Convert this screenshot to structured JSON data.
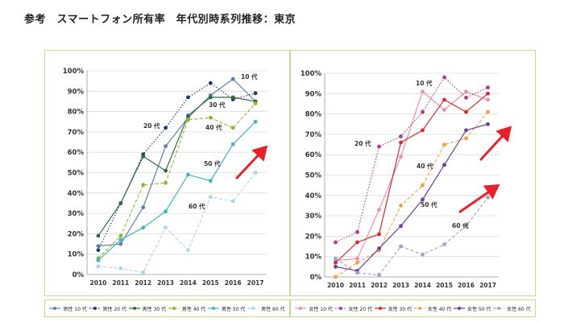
{
  "page_title": "参考　スマートフォン所有率　年代別時系列推移：東京",
  "chart_data": [
    {
      "type": "line",
      "x": [
        "2010",
        "2011",
        "2012",
        "2013",
        "2014",
        "2015",
        "2016",
        "2017"
      ],
      "y_ticks": [
        "0%",
        "10%",
        "20%",
        "30%",
        "40%",
        "50%",
        "60%",
        "70%",
        "80%",
        "90%",
        "100%"
      ],
      "ylim": [
        0,
        100
      ],
      "grid": true,
      "legend_position": "bottom",
      "series": [
        {
          "name": "男性 10 代",
          "label": "10 代",
          "color": "#5b7fa8",
          "dash": "solid",
          "values": [
            14,
            15,
            33,
            63,
            77,
            88,
            96,
            85
          ]
        },
        {
          "name": "男性 20 代",
          "label": "",
          "color": "#1c3a6e",
          "dash": "dotted",
          "values": [
            12,
            35,
            59,
            72,
            87,
            94,
            86,
            89
          ]
        },
        {
          "name": "男性 30 代",
          "label": "30 代",
          "color": "#2f6b3d",
          "dash": "solid",
          "values": [
            19,
            35,
            58,
            51,
            78,
            87,
            87,
            85
          ]
        },
        {
          "name": "男性 40 代",
          "label": "40 代",
          "color": "#8fb81f",
          "dash": "dashed",
          "values": [
            8,
            19,
            44,
            45,
            76,
            77,
            72,
            84
          ]
        },
        {
          "name": "男性 50 代",
          "label": "50 代",
          "color": "#3bb7be",
          "dash": "solid",
          "values": [
            7,
            17,
            23,
            31,
            49,
            46,
            64,
            75
          ]
        },
        {
          "name": "男性 60 代",
          "label": "60 代",
          "color": "#a8d4ec",
          "dash": "dashed",
          "values": [
            4,
            3,
            1,
            23,
            12,
            38,
            36,
            50
          ]
        }
      ],
      "inline_labels": [
        "20 代"
      ]
    },
    {
      "type": "line",
      "x": [
        "2010",
        "2011",
        "2012",
        "2013",
        "2014",
        "2015",
        "2016",
        "2017"
      ],
      "y_ticks": [
        "0%",
        "10%",
        "20%",
        "30%",
        "40%",
        "50%",
        "60%",
        "70%",
        "80%",
        "90%",
        "100%"
      ],
      "ylim": [
        0,
        100
      ],
      "grid": true,
      "legend_position": "bottom",
      "series": [
        {
          "name": "女性 10 代",
          "label": "10 代",
          "color": "#ee8fa8",
          "dash": "solid",
          "values": [
            8,
            9,
            33,
            59,
            91,
            82,
            91,
            87
          ]
        },
        {
          "name": "女性 20 代",
          "label": "20 代",
          "color": "#b03a8c",
          "dash": "dotted",
          "values": [
            17,
            22,
            64,
            69,
            81,
            98,
            88,
            93
          ]
        },
        {
          "name": "女性 30 代",
          "label": "",
          "color": "#d82a2a",
          "dash": "solid",
          "values": [
            7,
            17,
            21,
            66,
            72,
            87,
            81,
            90
          ]
        },
        {
          "name": "女性 40 代",
          "label": "40 代",
          "color": "#f0a048",
          "dash": "dashed",
          "values": [
            0,
            7,
            13,
            35,
            45,
            65,
            68,
            81
          ]
        },
        {
          "name": "女性 50 代",
          "label": "50 代",
          "color": "#6a3d9a",
          "dash": "solid",
          "values": [
            5,
            3,
            14,
            25,
            38,
            55,
            72,
            75
          ]
        },
        {
          "name": "女性 60 代",
          "label": "60 代",
          "color": "#a0a0c8",
          "dash": "dashed",
          "values": [
            9,
            2,
            1,
            15,
            11,
            16,
            25,
            39
          ]
        }
      ]
    }
  ]
}
